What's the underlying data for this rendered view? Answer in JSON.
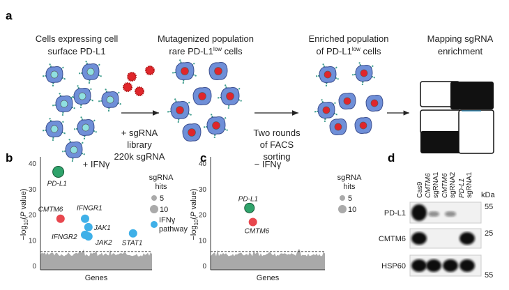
{
  "panel_a": {
    "label": "a",
    "steps": [
      {
        "line1": "Cells expressing cell",
        "line2": "surface PD-L1"
      },
      {
        "line1": "Mutagenized population",
        "line2a": "rare PD-L1",
        "sup": "low",
        "line2b": " cells"
      },
      {
        "line1": "Enriched population",
        "line2a": "of PD-L1",
        "sup": "low",
        "line2b": " cells"
      },
      {
        "line1": "Mapping sgRNA",
        "line2": "enrichment"
      }
    ],
    "arrow1_text": [
      "+ sgRNA",
      "library",
      "220k sgRNA"
    ],
    "arrow2_text": [
      "Two rounds",
      "of FACS",
      "sorting"
    ],
    "colors": {
      "cell": "#6f8fd8",
      "nucleus_wt": "#8fe0e0",
      "nucleus_mut": "#e0262b",
      "receptor": "#3a9a8a"
    }
  },
  "chart_data": [
    {
      "type": "scatter",
      "panel_label": "b",
      "title": "+ IFNγ",
      "xlabel": "Genes",
      "ylabel": "−log10(P value)",
      "ylim": [
        0,
        40
      ],
      "yticks": [
        "0",
        "10",
        "20",
        "30",
        "40"
      ],
      "threshold": 5.5,
      "legend": {
        "title": [
          "sgRNA",
          "hits"
        ],
        "sizes": [
          "5",
          "10"
        ],
        "pathway_label": [
          "IFNγ",
          "pathway"
        ],
        "placement": "right"
      },
      "points": [
        {
          "gene": "PD-L1",
          "gene_rank": 16,
          "y": 36.6,
          "hits": 10,
          "color": "#2fa36b"
        },
        {
          "gene": "CMTM6",
          "gene_rank": 18,
          "y": 18.3,
          "hits": 6,
          "color": "#e8474e"
        },
        {
          "gene": "IFNGR1",
          "gene_rank": 40,
          "y": 18.3,
          "hits": 6,
          "color": "#3fb0e8"
        },
        {
          "gene": "JAK1",
          "gene_rank": 43,
          "y": 15.0,
          "hits": 6,
          "color": "#3fb0e8"
        },
        {
          "gene": "IFNGR2",
          "gene_rank": 40,
          "y": 12.0,
          "hits": 6,
          "color": "#3fb0e8"
        },
        {
          "gene": "JAK2",
          "gene_rank": 43,
          "y": 11.4,
          "hits": 6,
          "color": "#3fb0e8"
        },
        {
          "gene": "STAT1",
          "gene_rank": 83,
          "y": 12.6,
          "hits": 6,
          "color": "#3fb0e8"
        }
      ]
    },
    {
      "type": "scatter",
      "panel_label": "c",
      "title": "− IFNγ",
      "xlabel": "Genes",
      "ylabel": "−log10(P value)",
      "ylim": [
        0,
        40
      ],
      "yticks": [
        "0",
        "10",
        "20",
        "30",
        "40"
      ],
      "threshold": 5.5,
      "legend": {
        "title": [
          "sgRNA",
          "hits"
        ],
        "sizes": [
          "5",
          "10"
        ],
        "placement": "right"
      },
      "points": [
        {
          "gene": "PD-L1",
          "gene_rank": 34,
          "y": 22.5,
          "hits": 8,
          "color": "#2fa36b"
        },
        {
          "gene": "CMTM6",
          "gene_rank": 37,
          "y": 17.0,
          "hits": 6,
          "color": "#e8474e"
        }
      ]
    }
  ],
  "panel_d": {
    "label": "d",
    "lanes": [
      [
        "Cas9"
      ],
      [
        "CMTM6",
        "sgRNA1"
      ],
      [
        "CMTM6",
        "sgRNA2"
      ],
      [
        "PD-L1",
        "sgRNA1"
      ]
    ],
    "kda_label": "kDa",
    "blots": [
      {
        "name": "PD-L1",
        "marker": "55",
        "intensity": [
          1.0,
          0.45,
          0.45,
          0.0
        ]
      },
      {
        "name": "CMTM6",
        "marker": "25",
        "intensity": [
          1.0,
          0.0,
          0.0,
          1.0
        ]
      },
      {
        "name": "HSP60",
        "marker": "55",
        "intensity": [
          1.0,
          1.0,
          1.0,
          1.0
        ]
      }
    ]
  }
}
